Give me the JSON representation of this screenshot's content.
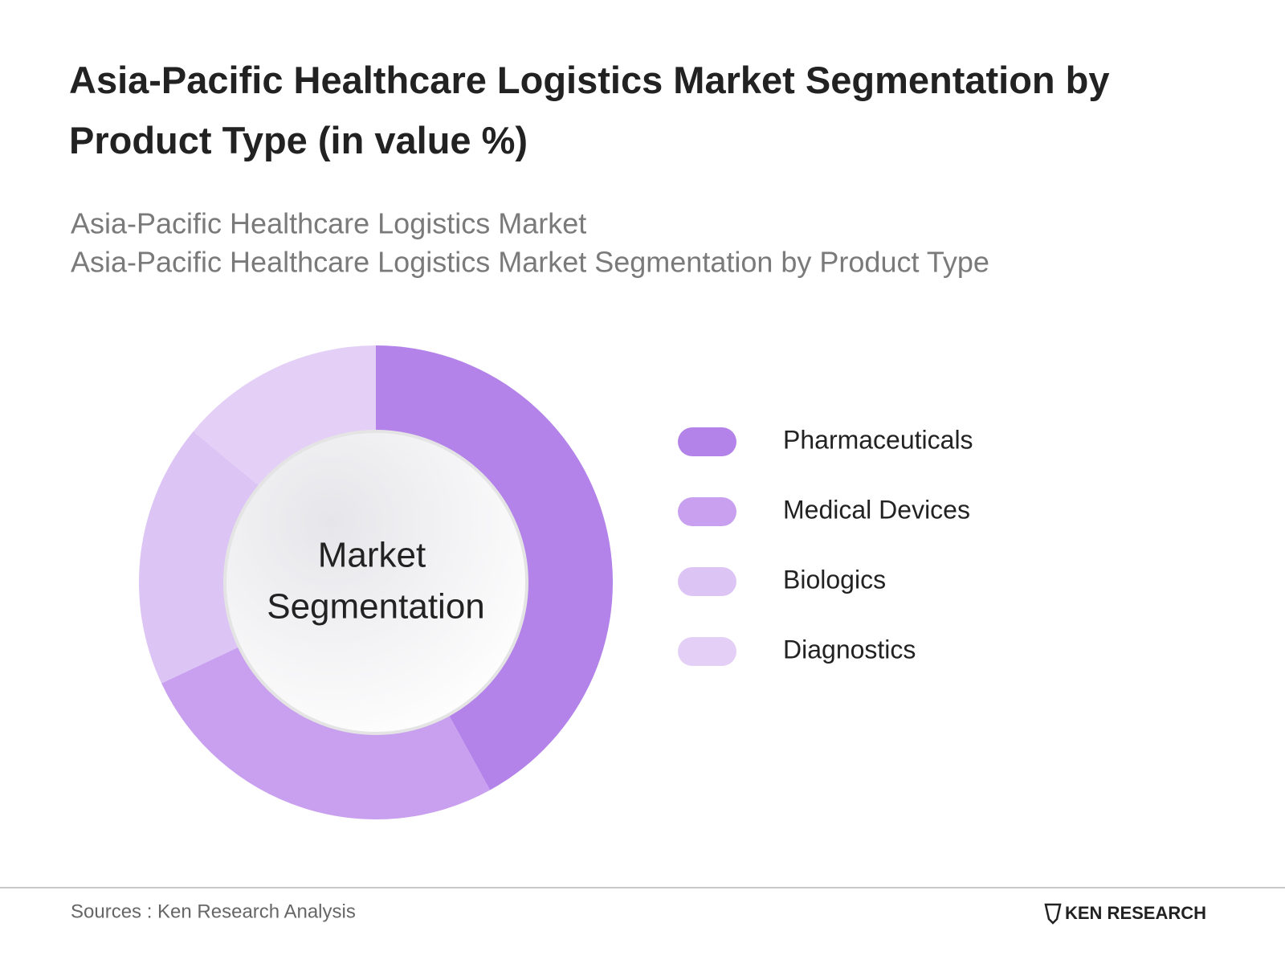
{
  "chart_data": {
    "type": "donut",
    "title": "Asia-Pacific Healthcare Logistics Market Segmentation by Product Type (in value %)",
    "subtitle_lines": [
      "Asia-Pacific Healthcare Logistics Market",
      "Asia-Pacific Healthcare Logistics Market Segmentation by Product Type"
    ],
    "center_label": [
      "Market",
      "Segmentation"
    ],
    "categories": [
      "Pharmaceuticals",
      "Medical Devices",
      "Biologics",
      "Diagnostics"
    ],
    "values": [
      42,
      26,
      18,
      14
    ],
    "colors": [
      "#b383ea",
      "#c8a0ef",
      "#dcc4f5",
      "#e4d0f7"
    ],
    "source": "Sources : Ken Research Analysis",
    "logo": "KEN RESEARCH"
  }
}
